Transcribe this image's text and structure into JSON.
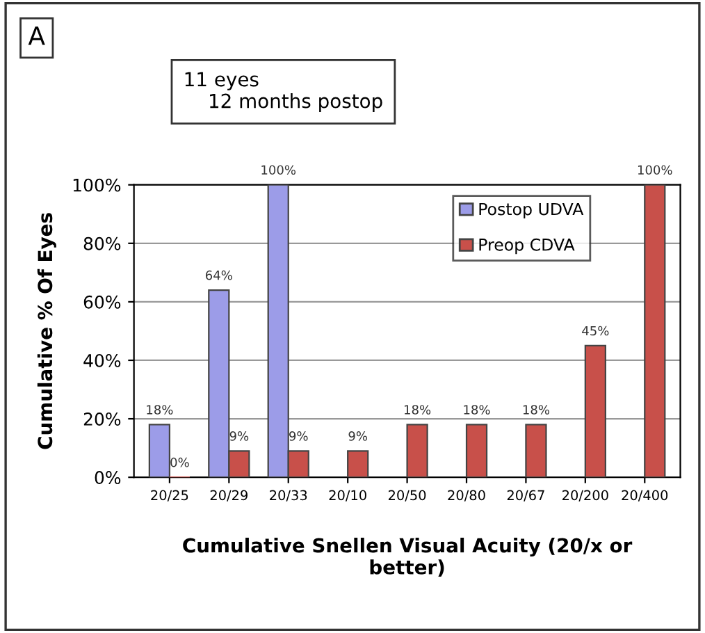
{
  "chart_data": {
    "type": "bar",
    "title": "A",
    "ylabel": "Cumulative % Of Eyes",
    "xlabel": "Cumulative Snellen Visual Acuity (20/x or\nbetter)",
    "annotations": [
      "11 eyes\n    12 months postop"
    ],
    "categories": [
      "20/25",
      "20/29",
      "20/33",
      "20/10",
      "20/50",
      "20/80",
      "20/67",
      "20/200",
      "20/400"
    ],
    "series": [
      {
        "name": "Postop UDVA",
        "color": "#9c9ce8",
        "values": [
          18,
          64,
          100,
          null,
          null,
          null,
          null,
          null,
          null
        ],
        "value_labels": [
          "18%",
          "64%",
          "100%",
          null,
          null,
          null,
          null,
          null,
          null
        ]
      },
      {
        "name": "Preop CDVA",
        "color": "#c8504a",
        "values": [
          0,
          9,
          9,
          9,
          18,
          18,
          18,
          45,
          100
        ],
        "value_labels": [
          "0%",
          "9%",
          "9%",
          "9%",
          "18%",
          "18%",
          "18%",
          "45%",
          "100%"
        ]
      }
    ],
    "ylim": [
      0,
      100
    ],
    "yticks": [
      {
        "value": 0,
        "label": "0%"
      },
      {
        "value": 20,
        "label": "20%"
      },
      {
        "value": 40,
        "label": "40%"
      },
      {
        "value": 60,
        "label": "60%"
      },
      {
        "value": 80,
        "label": "80%"
      },
      {
        "value": 100,
        "label": "100%"
      }
    ],
    "grid": "y",
    "legend": "top right"
  }
}
